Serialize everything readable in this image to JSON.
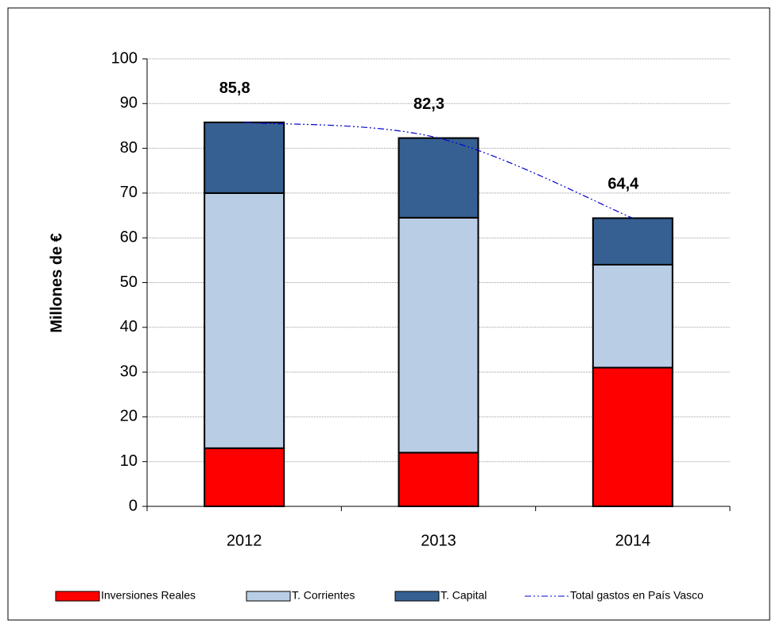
{
  "chart_data": {
    "type": "bar",
    "stacked": true,
    "y_label": "Millones de €",
    "categories": [
      "2012",
      "2013",
      "2014"
    ],
    "series": [
      {
        "name": "Inversiones Reales",
        "color": "#ff0000",
        "values": [
          13,
          12,
          31
        ]
      },
      {
        "name": "T. Corrientes",
        "color": "#b9cde5",
        "values": [
          57,
          52.5,
          23
        ]
      },
      {
        "name": "T. Capital",
        "color": "#376092",
        "values": [
          15.8,
          17.8,
          10.4
        ]
      },
      {
        "name": "Total gastos en País Vasco",
        "type": "line",
        "color": "#0000cc",
        "values": [
          85.8,
          82.3,
          64.4
        ],
        "value_labels": [
          "85,8",
          "82,3",
          "64,4"
        ]
      }
    ],
    "ylim": [
      0,
      100
    ],
    "yticks": [
      0,
      10,
      20,
      30,
      40,
      50,
      60,
      70,
      80,
      90,
      100
    ],
    "grid": true,
    "legend": "bottom"
  }
}
